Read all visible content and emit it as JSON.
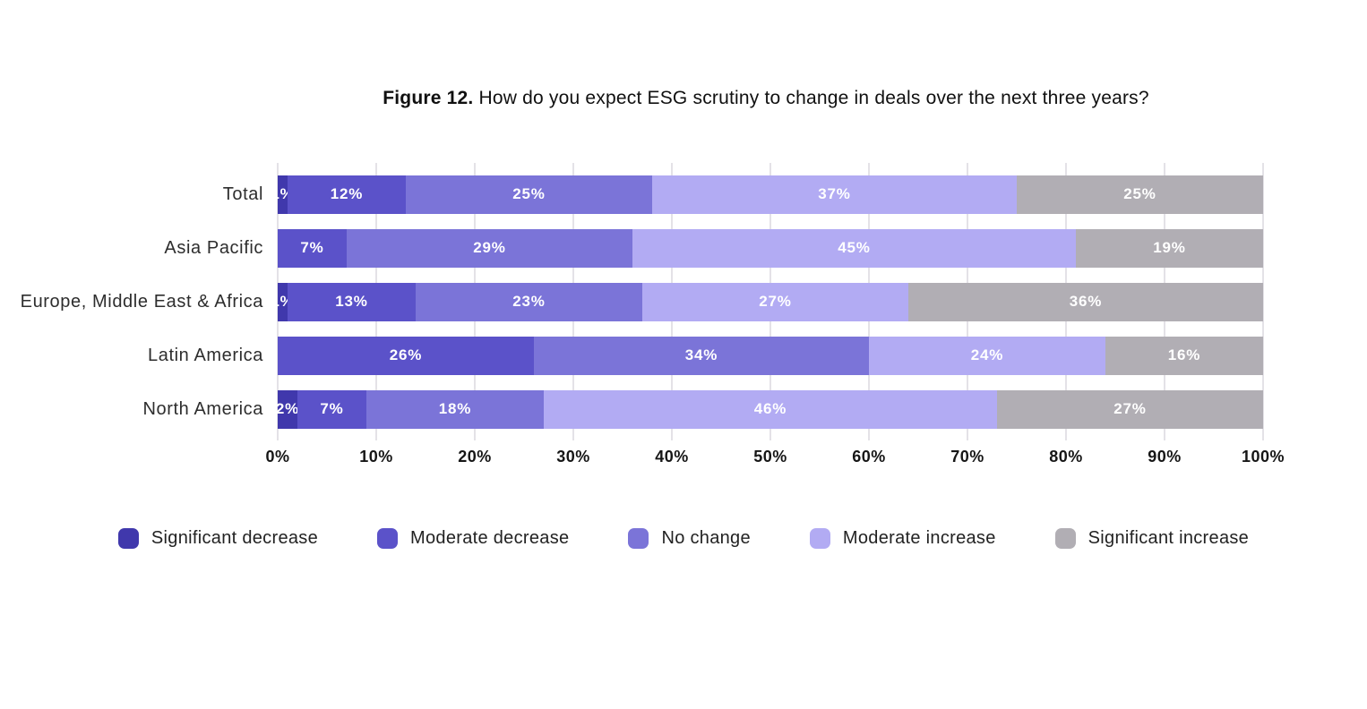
{
  "title": {
    "prefix": "Figure 12.",
    "text": " How do you expect ESG scrutiny to change in deals over the next three years?"
  },
  "chart_data": {
    "type": "bar",
    "stacked": true,
    "orientation": "horizontal",
    "title": "Figure 12. How do you expect ESG scrutiny to change in deals over the next three years?",
    "categories": [
      "Total",
      "Asia Pacific",
      "Europe, Middle East & Africa",
      "Latin America",
      "North America"
    ],
    "series": [
      {
        "name": "Significant decrease",
        "color": "#4038ac",
        "values": [
          1,
          0,
          1,
          0,
          2
        ]
      },
      {
        "name": "Moderate decrease",
        "color": "#5b52c9",
        "values": [
          12,
          7,
          13,
          26,
          7
        ]
      },
      {
        "name": "No change",
        "color": "#7b74d8",
        "values": [
          25,
          29,
          23,
          34,
          18
        ]
      },
      {
        "name": "Moderate increase",
        "color": "#b2abf3",
        "values": [
          37,
          45,
          27,
          24,
          46
        ]
      },
      {
        "name": "Significant increase",
        "color": "#b1aeb4",
        "values": [
          25,
          19,
          36,
          16,
          27
        ]
      }
    ],
    "value_suffix": "%",
    "x_axis": {
      "min": 0,
      "max": 100,
      "ticks": [
        "0%",
        "10%",
        "20%",
        "30%",
        "40%",
        "50%",
        "60%",
        "70%",
        "80%",
        "90%",
        "100%"
      ]
    },
    "grid": true,
    "legend_position": "bottom",
    "bar_label_color": "#ffffff",
    "gridline_color": "#e4e2e7"
  }
}
